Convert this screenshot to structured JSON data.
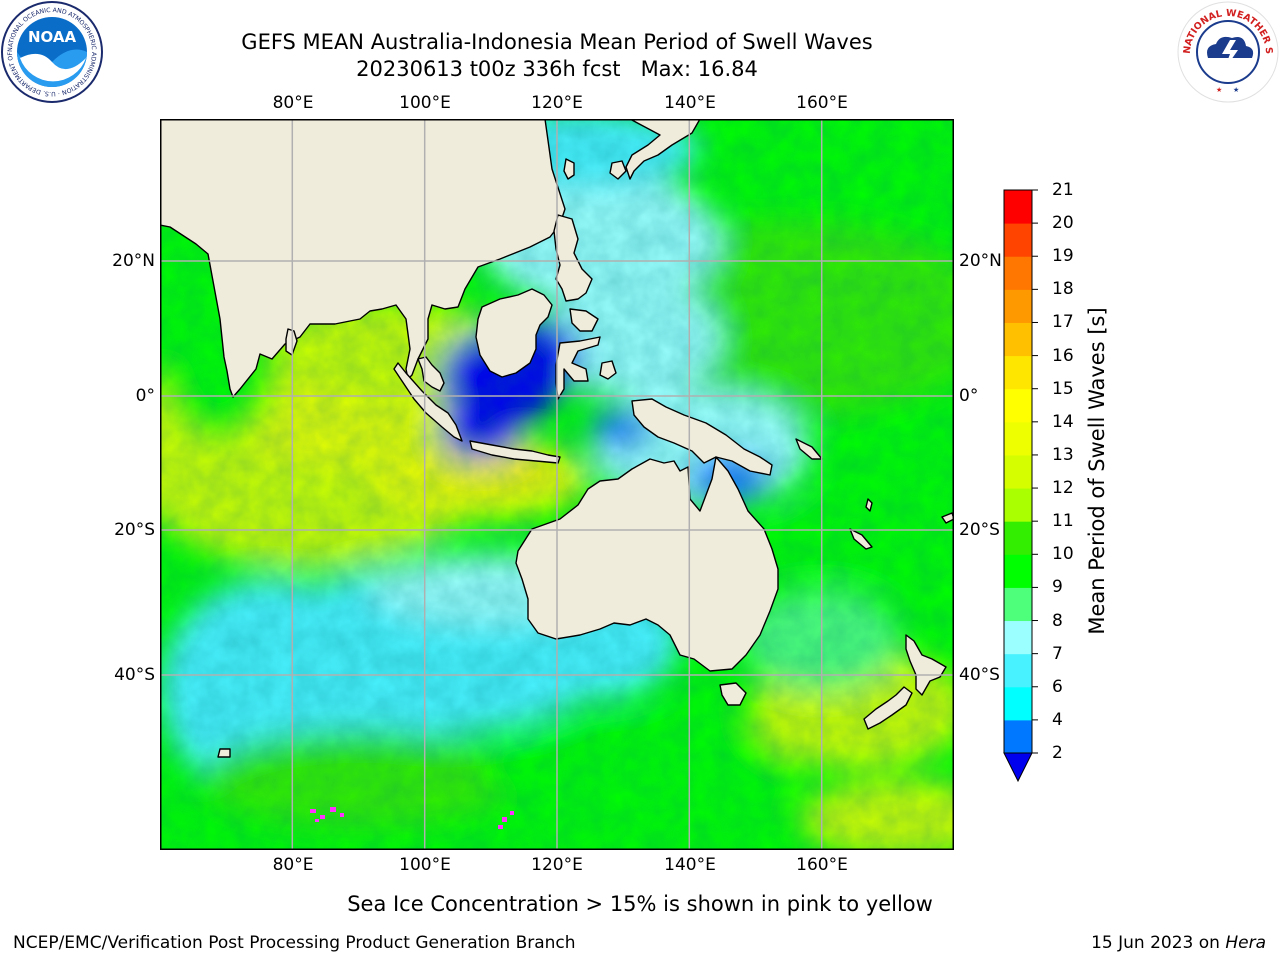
{
  "header": {
    "title_line1": "GEFS MEAN Australia-Indonesia Mean Period of Swell Waves",
    "title_line2": "20230613 t00z 336h fcst   Max: 16.84"
  },
  "logos": {
    "noaa_text": "NOAA",
    "noaa_ring_text": "NATIONAL OCEANIC AND ATMOSPHERIC ADMINISTRATION · U.S. DEPARTMENT OF COMMERCE",
    "nws_ring_text": "NATIONAL WEATHER SERVICE"
  },
  "map": {
    "projection": "equirectangular",
    "lon_range": [
      60,
      180
    ],
    "lat_range": [
      -68,
      43
    ],
    "lon_ticks": [
      "80°E",
      "100°E",
      "120°E",
      "140°E",
      "160°E"
    ],
    "lat_ticks": [
      "20°N",
      "0°",
      "20°S",
      "40°S"
    ],
    "gridlines": true,
    "land_color": "#efecdc",
    "ocean_default_color": "#00ff00"
  },
  "colorbar": {
    "label": "Mean Period of Swell Waves [s]",
    "ticks": [
      "2",
      "4",
      "6",
      "7",
      "8",
      "9",
      "10",
      "11",
      "12",
      "13",
      "14",
      "15",
      "16",
      "17",
      "18",
      "19",
      "20",
      "21"
    ],
    "colors": [
      "#0078ff",
      "#00ffff",
      "#49f2ff",
      "#9cffff",
      "#4dff7a",
      "#00ff00",
      "#33ee00",
      "#aaff00",
      "#d5ff00",
      "#eeff00",
      "#ffff00",
      "#ffe600",
      "#ffc000",
      "#ff9900",
      "#ff7700",
      "#ff4400",
      "#ff0000"
    ],
    "extend_color": "#0000ee"
  },
  "footer": {
    "note": "Sea Ice Concentration > 15% is shown in pink to yellow",
    "credit": "NCEP/EMC/Verification Post Processing Product Generation Branch",
    "date": "15 Jun 2023 on ",
    "host": "Hera"
  }
}
